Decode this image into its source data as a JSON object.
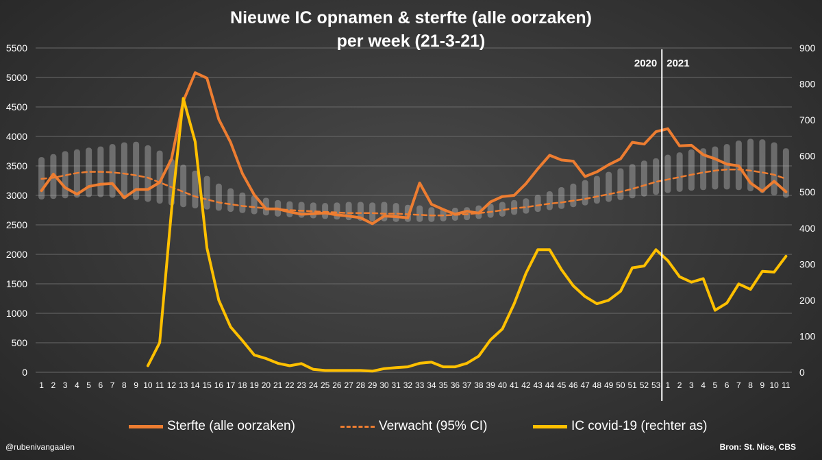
{
  "chart_data": {
    "type": "line",
    "title": "Nieuwe IC opnamen & sterfte (alle oorzaken)",
    "subtitle": "per week (21-3-21)",
    "xlabel": "",
    "ylabel": "",
    "y_left": {
      "min": 0,
      "max": 5500,
      "ticks": [
        0,
        500,
        1000,
        1500,
        2000,
        2500,
        3000,
        3500,
        4000,
        4500,
        5000,
        5500
      ]
    },
    "y_right": {
      "min": 0,
      "max": 900,
      "ticks": [
        0,
        100,
        200,
        300,
        400,
        500,
        600,
        700,
        800,
        900
      ]
    },
    "grid": true,
    "legend_position": "bottom",
    "categories": [
      "1",
      "2",
      "3",
      "4",
      "5",
      "6",
      "7",
      "8",
      "9",
      "10",
      "11",
      "12",
      "13",
      "14",
      "15",
      "16",
      "17",
      "18",
      "19",
      "20",
      "21",
      "22",
      "23",
      "24",
      "25",
      "26",
      "27",
      "28",
      "29",
      "30",
      "31",
      "32",
      "33",
      "34",
      "35",
      "36",
      "37",
      "38",
      "39",
      "40",
      "41",
      "42",
      "43",
      "44",
      "45",
      "46",
      "47",
      "48",
      "49",
      "50",
      "51",
      "52",
      "53",
      "1",
      "2",
      "3",
      "4",
      "5",
      "6",
      "7",
      "8",
      "9",
      "10",
      "11"
    ],
    "year_divider": {
      "after_index": 52,
      "left_label": "2020",
      "right_label": "2021"
    },
    "series": [
      {
        "name": "Sterfte (alle oorzaken)",
        "axis": "left",
        "color": "#ed7d31",
        "style": "solid",
        "values": [
          3080,
          3360,
          3130,
          3020,
          3150,
          3190,
          3200,
          2960,
          3100,
          3100,
          3220,
          3620,
          4600,
          5080,
          4990,
          4290,
          3900,
          3370,
          3010,
          2770,
          2770,
          2720,
          2680,
          2690,
          2700,
          2670,
          2650,
          2620,
          2520,
          2650,
          2640,
          2620,
          3210,
          2850,
          2760,
          2680,
          2730,
          2700,
          2890,
          2980,
          3000,
          3200,
          3450,
          3680,
          3600,
          3580,
          3320,
          3400,
          3520,
          3620,
          3900,
          3870,
          4080,
          4130,
          3840,
          3850,
          3690,
          3620,
          3530,
          3500,
          3210,
          3070,
          3240,
          3060
        ]
      },
      {
        "name": "Verwacht (95% CI)",
        "axis": "left",
        "color": "#ed7d31",
        "style": "dashed",
        "values": [
          3280,
          3300,
          3340,
          3380,
          3400,
          3400,
          3390,
          3370,
          3340,
          3300,
          3220,
          3140,
          3060,
          2980,
          2930,
          2880,
          2850,
          2820,
          2800,
          2780,
          2770,
          2750,
          2740,
          2730,
          2720,
          2710,
          2700,
          2700,
          2700,
          2690,
          2690,
          2680,
          2670,
          2660,
          2660,
          2670,
          2680,
          2700,
          2720,
          2750,
          2780,
          2800,
          2830,
          2860,
          2880,
          2910,
          2940,
          2980,
          3020,
          3060,
          3110,
          3170,
          3230,
          3270,
          3310,
          3350,
          3390,
          3420,
          3440,
          3440,
          3420,
          3390,
          3350,
          3280
        ],
        "ci_low": [
          2930,
          2940,
          2950,
          2960,
          2970,
          2970,
          2960,
          2940,
          2920,
          2890,
          2860,
          2830,
          2800,
          2780,
          2760,
          2740,
          2720,
          2700,
          2680,
          2660,
          2640,
          2630,
          2620,
          2610,
          2600,
          2590,
          2580,
          2570,
          2560,
          2560,
          2550,
          2550,
          2550,
          2550,
          2560,
          2570,
          2580,
          2600,
          2620,
          2640,
          2670,
          2690,
          2720,
          2750,
          2770,
          2800,
          2830,
          2860,
          2890,
          2920,
          2950,
          2980,
          3010,
          3040,
          3060,
          3080,
          3090,
          3100,
          3100,
          3090,
          3070,
          3040,
          3000,
          2960
        ],
        "ci_high": [
          3650,
          3700,
          3750,
          3780,
          3810,
          3830,
          3870,
          3900,
          3910,
          3850,
          3760,
          3620,
          3520,
          3420,
          3330,
          3200,
          3120,
          3050,
          3000,
          2960,
          2920,
          2900,
          2890,
          2880,
          2870,
          2880,
          2890,
          2890,
          2880,
          2890,
          2870,
          2840,
          2830,
          2800,
          2780,
          2790,
          2800,
          2830,
          2860,
          2890,
          2920,
          2950,
          3010,
          3070,
          3140,
          3200,
          3260,
          3330,
          3400,
          3460,
          3530,
          3590,
          3630,
          3690,
          3730,
          3780,
          3800,
          3830,
          3870,
          3930,
          3960,
          3950,
          3900,
          3800
        ]
      },
      {
        "name": "IC covid-19 (rechter as)",
        "axis": "right",
        "color": "#ffc000",
        "style": "solid",
        "values": [
          null,
          null,
          null,
          null,
          null,
          null,
          null,
          null,
          null,
          18,
          82,
          450,
          760,
          640,
          345,
          200,
          126,
          88,
          48,
          38,
          25,
          18,
          24,
          8,
          5,
          5,
          5,
          5,
          3,
          10,
          13,
          15,
          25,
          28,
          15,
          15,
          25,
          45,
          90,
          120,
          190,
          275,
          340,
          340,
          285,
          240,
          210,
          190,
          200,
          225,
          290,
          295,
          340,
          310,
          265,
          250,
          260,
          172,
          192,
          245,
          230,
          280,
          278,
          322
        ]
      }
    ]
  },
  "footer": {
    "handle": "@rubenivangaalen",
    "source": "Bron: St. Nice, CBS"
  }
}
